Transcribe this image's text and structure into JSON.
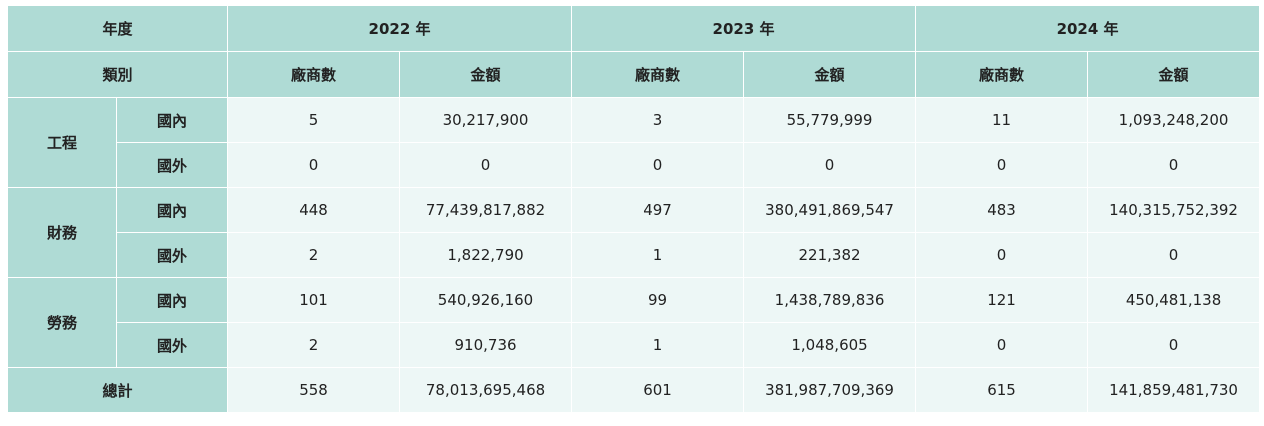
{
  "header": {
    "year_label": "年度",
    "years": [
      "2022 年",
      "2023 年",
      "2024 年"
    ],
    "category_label": "類別",
    "vendor_count_label": "廠商數",
    "amount_label": "金額"
  },
  "groups": [
    {
      "name": "工程",
      "rows": [
        {
          "region": "國內",
          "values": [
            "5",
            "30,217,900",
            "3",
            "55,779,999",
            "11",
            "1,093,248,200"
          ]
        },
        {
          "region": "國外",
          "values": [
            "0",
            "0",
            "0",
            "0",
            "0",
            "0"
          ]
        }
      ]
    },
    {
      "name": "財務",
      "rows": [
        {
          "region": "國內",
          "values": [
            "448",
            "77,439,817,882",
            "497",
            "380,491,869,547",
            "483",
            "140,315,752,392"
          ]
        },
        {
          "region": "國外",
          "values": [
            "2",
            "1,822,790",
            "1",
            "221,382",
            "0",
            "0"
          ]
        }
      ]
    },
    {
      "name": "勞務",
      "rows": [
        {
          "region": "國內",
          "values": [
            "101",
            "540,926,160",
            "99",
            "1,438,789,836",
            "121",
            "450,481,138"
          ]
        },
        {
          "region": "國外",
          "values": [
            "2",
            "910,736",
            "1",
            "1,048,605",
            "0",
            "0"
          ]
        }
      ]
    }
  ],
  "total": {
    "label": "總計",
    "values": [
      "558",
      "78,013,695,468",
      "601",
      "381,987,709,369",
      "615",
      "141,859,481,730"
    ]
  },
  "colors": {
    "header_bg": "#afdbd5",
    "cell_bg": "#edf7f6",
    "border": "#ffffff"
  }
}
